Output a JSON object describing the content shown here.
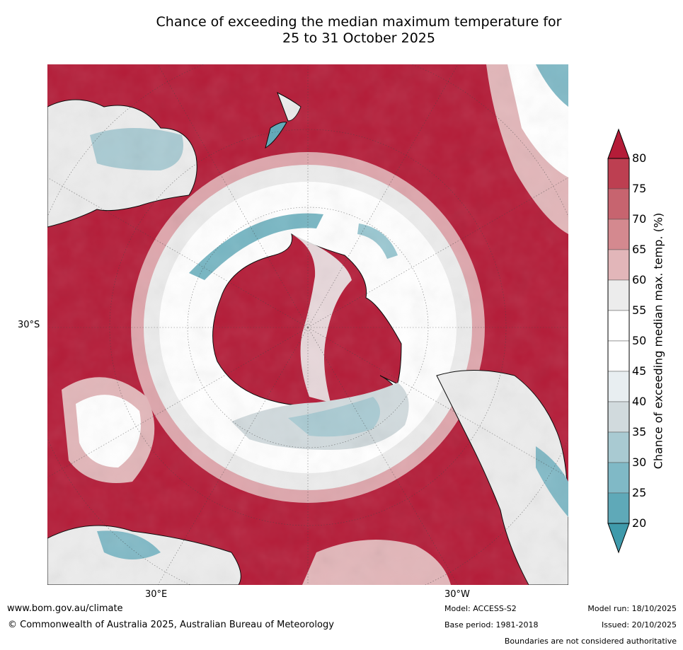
{
  "title": {
    "line1": "Chance of exceeding the median maximum temperature for",
    "line2": "25 to 31 October 2025"
  },
  "map": {
    "projection": "south polar stereographic",
    "lat_label": "30°S",
    "lon_label_east": "30°E",
    "lon_label_west": "30°W"
  },
  "colorbar": {
    "label": "Chance of exceeding median max. temp. (%)",
    "ticks": [
      "80",
      "75",
      "70",
      "65",
      "60",
      "55",
      "50",
      "45",
      "40",
      "35",
      "30",
      "25",
      "20"
    ],
    "colors": [
      "#b41c38",
      "#bd3f51",
      "#c7646f",
      "#d4898f",
      "#e2b6b9",
      "#ececec",
      "#ffffff",
      "#ffffff",
      "#e8eef1",
      "#d1dadd",
      "#a9cad2",
      "#80b9c6",
      "#5fa9b8",
      "#3f9aab"
    ]
  },
  "footer": {
    "url": "www.bom.gov.au/climate",
    "copyright": "© Commonwealth of Australia 2025, Australian Bureau of Meteorology",
    "model": "Model: ACCESS-S2",
    "base_period": "Base period: 1981-2018",
    "model_run": "Model run: 18/10/2025",
    "issued": "Issued: 20/10/2025",
    "disclaimer": "Boundaries are not considered authoritative"
  }
}
